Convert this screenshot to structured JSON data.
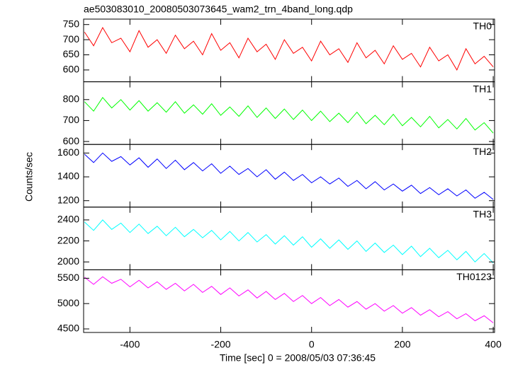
{
  "chart_data": {
    "type": "line",
    "title": "ae503083010_20080503073645_wam2_trn_4band_long.qdp",
    "xlabel": "Time [sec] 0 = 2008/05/03 07:36:45",
    "ylabel": "Counts/sec",
    "xlim": [
      -502,
      403
    ],
    "xticks": [
      -400,
      -200,
      0,
      200,
      400
    ],
    "x": [
      -500,
      -480,
      -460,
      -440,
      -420,
      -400,
      -380,
      -360,
      -340,
      -320,
      -300,
      -280,
      -260,
      -240,
      -220,
      -200,
      -180,
      -160,
      -140,
      -120,
      -100,
      -80,
      -60,
      -40,
      -20,
      0,
      20,
      40,
      60,
      80,
      100,
      120,
      140,
      160,
      180,
      200,
      220,
      240,
      260,
      280,
      300,
      320,
      340,
      360,
      380,
      400
    ],
    "series": [
      {
        "name": "TH0",
        "color": "#ff0000",
        "ylim": [
          561,
          768
        ],
        "yticks": [
          600,
          650,
          700,
          750
        ],
        "values": [
          725,
          680,
          740,
          690,
          705,
          660,
          730,
          675,
          700,
          655,
          715,
          670,
          695,
          650,
          720,
          665,
          690,
          640,
          705,
          660,
          685,
          635,
          700,
          655,
          675,
          630,
          695,
          650,
          670,
          625,
          690,
          640,
          665,
          620,
          680,
          635,
          655,
          610,
          675,
          630,
          650,
          600,
          670,
          620,
          645,
          610
        ]
      },
      {
        "name": "TH1",
        "color": "#00ff00",
        "ylim": [
          586,
          885
        ],
        "yticks": [
          600,
          700,
          800
        ],
        "values": [
          790,
          745,
          810,
          760,
          800,
          750,
          795,
          745,
          785,
          740,
          790,
          735,
          775,
          730,
          780,
          725,
          765,
          720,
          770,
          715,
          760,
          710,
          755,
          705,
          750,
          700,
          745,
          695,
          735,
          690,
          740,
          685,
          725,
          680,
          730,
          675,
          715,
          670,
          720,
          665,
          705,
          660,
          710,
          655,
          690,
          640
        ]
      },
      {
        "name": "TH2",
        "color": "#0000ff",
        "ylim": [
          1146,
          1672
        ],
        "yticks": [
          1200,
          1400,
          1600
        ],
        "values": [
          1590,
          1520,
          1600,
          1530,
          1570,
          1500,
          1560,
          1480,
          1550,
          1470,
          1540,
          1460,
          1520,
          1450,
          1510,
          1430,
          1490,
          1420,
          1470,
          1400,
          1460,
          1380,
          1440,
          1370,
          1420,
          1350,
          1400,
          1340,
          1390,
          1320,
          1370,
          1300,
          1360,
          1290,
          1340,
          1280,
          1330,
          1260,
          1310,
          1250,
          1300,
          1240,
          1290,
          1220,
          1270,
          1210
        ]
      },
      {
        "name": "TH3",
        "color": "#00ffff",
        "ylim": [
          1925,
          2522
        ],
        "yticks": [
          2000,
          2200,
          2400
        ],
        "values": [
          2380,
          2300,
          2400,
          2310,
          2370,
          2280,
          2360,
          2270,
          2340,
          2250,
          2330,
          2240,
          2310,
          2230,
          2300,
          2210,
          2290,
          2200,
          2280,
          2190,
          2260,
          2170,
          2250,
          2160,
          2240,
          2140,
          2220,
          2130,
          2210,
          2120,
          2200,
          2100,
          2180,
          2090,
          2160,
          2070,
          2150,
          2050,
          2130,
          2040,
          2110,
          2020,
          2100,
          2000,
          2080,
          1990
        ]
      },
      {
        "name": "TH0123",
        "color": "#ff00ff",
        "ylim": [
          4430,
          5667
        ],
        "yticks": [
          4500,
          5000,
          5500
        ],
        "values": [
          5520,
          5380,
          5530,
          5400,
          5480,
          5330,
          5460,
          5310,
          5430,
          5280,
          5400,
          5250,
          5380,
          5220,
          5340,
          5180,
          5310,
          5150,
          5270,
          5110,
          5240,
          5080,
          5200,
          5040,
          5160,
          5000,
          5120,
          4960,
          5080,
          4930,
          5040,
          4890,
          5000,
          4850,
          4960,
          4810,
          4920,
          4770,
          4880,
          4740,
          4840,
          4700,
          4800,
          4660,
          4760,
          4620
        ]
      }
    ]
  }
}
